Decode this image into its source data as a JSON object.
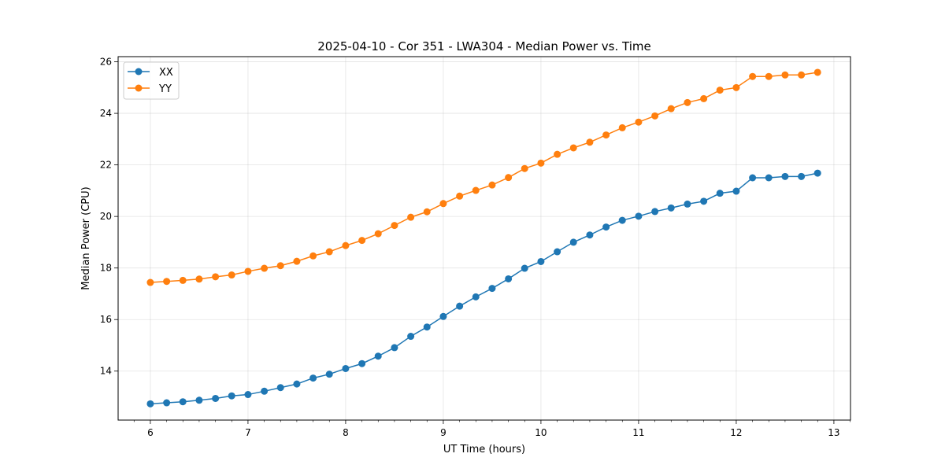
{
  "chart_data": {
    "type": "line",
    "title": "2025-04-10 - Cor 351 - LWA304 - Median Power vs. Time",
    "xlabel": "UT Time (hours)",
    "ylabel": "Median Power (CPU)",
    "xlim": [
      5.67,
      13.17
    ],
    "ylim": [
      12.1,
      26.2
    ],
    "xticks": [
      6,
      7,
      8,
      9,
      10,
      11,
      12,
      13
    ],
    "yticks": [
      14,
      16,
      18,
      20,
      22,
      24,
      26
    ],
    "grid": true,
    "legend_position": "top-left",
    "x": [
      6.0,
      6.167,
      6.333,
      6.5,
      6.667,
      6.833,
      7.0,
      7.167,
      7.333,
      7.5,
      7.667,
      7.833,
      8.0,
      8.167,
      8.333,
      8.5,
      8.667,
      8.833,
      9.0,
      9.167,
      9.333,
      9.5,
      9.667,
      9.833,
      10.0,
      10.167,
      10.333,
      10.5,
      10.667,
      10.833,
      11.0,
      11.167,
      11.333,
      11.5,
      11.667,
      11.833,
      12.0,
      12.167,
      12.333,
      12.5,
      12.667,
      12.833
    ],
    "series": [
      {
        "name": "XX",
        "color": "#1f77b4",
        "values": [
          12.73,
          12.77,
          12.81,
          12.87,
          12.94,
          13.04,
          13.09,
          13.22,
          13.36,
          13.5,
          13.73,
          13.88,
          14.1,
          14.29,
          14.58,
          14.91,
          15.35,
          15.71,
          16.12,
          16.52,
          16.88,
          17.21,
          17.58,
          17.99,
          18.25,
          18.63,
          19.0,
          19.28,
          19.59,
          19.85,
          20.01,
          20.19,
          20.33,
          20.48,
          20.59,
          20.9,
          20.98,
          21.5,
          21.5,
          21.55,
          21.55,
          21.68
        ]
      },
      {
        "name": "YY",
        "color": "#ff7f0e",
        "values": [
          17.44,
          17.48,
          17.52,
          17.57,
          17.66,
          17.73,
          17.87,
          17.99,
          18.09,
          18.26,
          18.47,
          18.63,
          18.87,
          19.07,
          19.33,
          19.65,
          19.97,
          20.18,
          20.5,
          20.79,
          21.01,
          21.22,
          21.51,
          21.86,
          22.07,
          22.41,
          22.66,
          22.88,
          23.16,
          23.44,
          23.66,
          23.9,
          24.18,
          24.42,
          24.57,
          24.9,
          25.0,
          25.43,
          25.43,
          25.49,
          25.49,
          25.59
        ]
      }
    ]
  }
}
